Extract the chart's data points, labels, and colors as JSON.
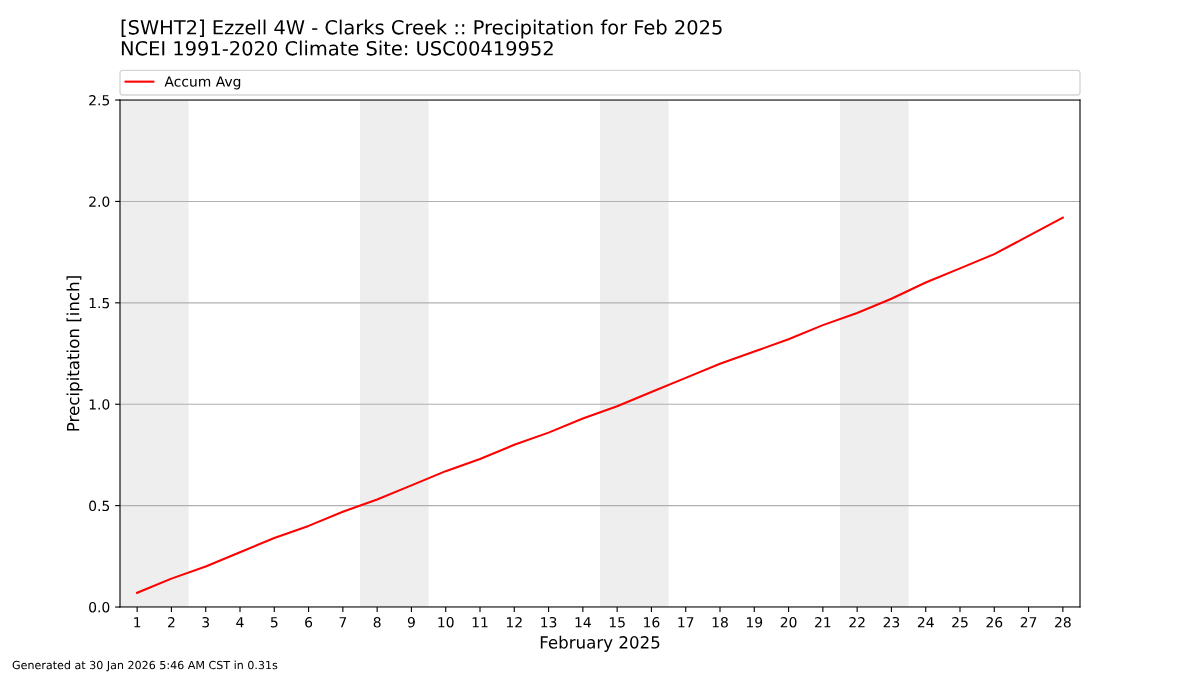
{
  "chart_data": {
    "type": "line",
    "title": "[SWHT2] Ezzell 4W - Clarks Creek :: Precipitation for Feb 2025",
    "subtitle": "NCEI 1991-2020 Climate Site: USC00419952",
    "xlabel": "February 2025",
    "ylabel": "Precipitation [inch]",
    "x": [
      1,
      2,
      3,
      4,
      5,
      6,
      7,
      8,
      9,
      10,
      11,
      12,
      13,
      14,
      15,
      16,
      17,
      18,
      19,
      20,
      21,
      22,
      23,
      24,
      25,
      26,
      27,
      28
    ],
    "series": [
      {
        "name": "Accum Avg",
        "color": "#ff0000",
        "values": [
          0.07,
          0.14,
          0.2,
          0.27,
          0.34,
          0.4,
          0.47,
          0.53,
          0.6,
          0.67,
          0.73,
          0.8,
          0.86,
          0.93,
          0.99,
          1.06,
          1.13,
          1.2,
          1.26,
          1.32,
          1.39,
          1.45,
          1.52,
          1.6,
          1.67,
          1.74,
          1.83,
          1.92
        ]
      }
    ],
    "xlim": [
      0.5,
      28.5
    ],
    "xticks": [
      1,
      2,
      3,
      4,
      5,
      6,
      7,
      8,
      9,
      10,
      11,
      12,
      13,
      14,
      15,
      16,
      17,
      18,
      19,
      20,
      21,
      22,
      23,
      24,
      25,
      26,
      27,
      28
    ],
    "ylim": [
      0,
      2.5
    ],
    "yticks": [
      {
        "value": 0,
        "label": "0.0"
      },
      {
        "value": 0.5,
        "label": "0.5"
      },
      {
        "value": 1,
        "label": "1.0"
      },
      {
        "value": 1.5,
        "label": "1.5"
      },
      {
        "value": 2,
        "label": "2.0"
      },
      {
        "value": 2.5,
        "label": "2.5"
      }
    ],
    "grid": "y",
    "legend": "top",
    "marker": "none",
    "line_style": "solid",
    "bands": [
      {
        "axis": "x",
        "from": 0.5,
        "to": 2.5,
        "color": "#eeeeee"
      },
      {
        "axis": "x",
        "from": 7.5,
        "to": 9.5,
        "color": "#eeeeee"
      },
      {
        "axis": "x",
        "from": 14.5,
        "to": 16.5,
        "color": "#eeeeee"
      },
      {
        "axis": "x",
        "from": 21.5,
        "to": 23.5,
        "color": "#eeeeee"
      }
    ],
    "annotations": [
      "Generated at 30 Jan 2026 5:46 AM CST in 0.31s"
    ]
  }
}
